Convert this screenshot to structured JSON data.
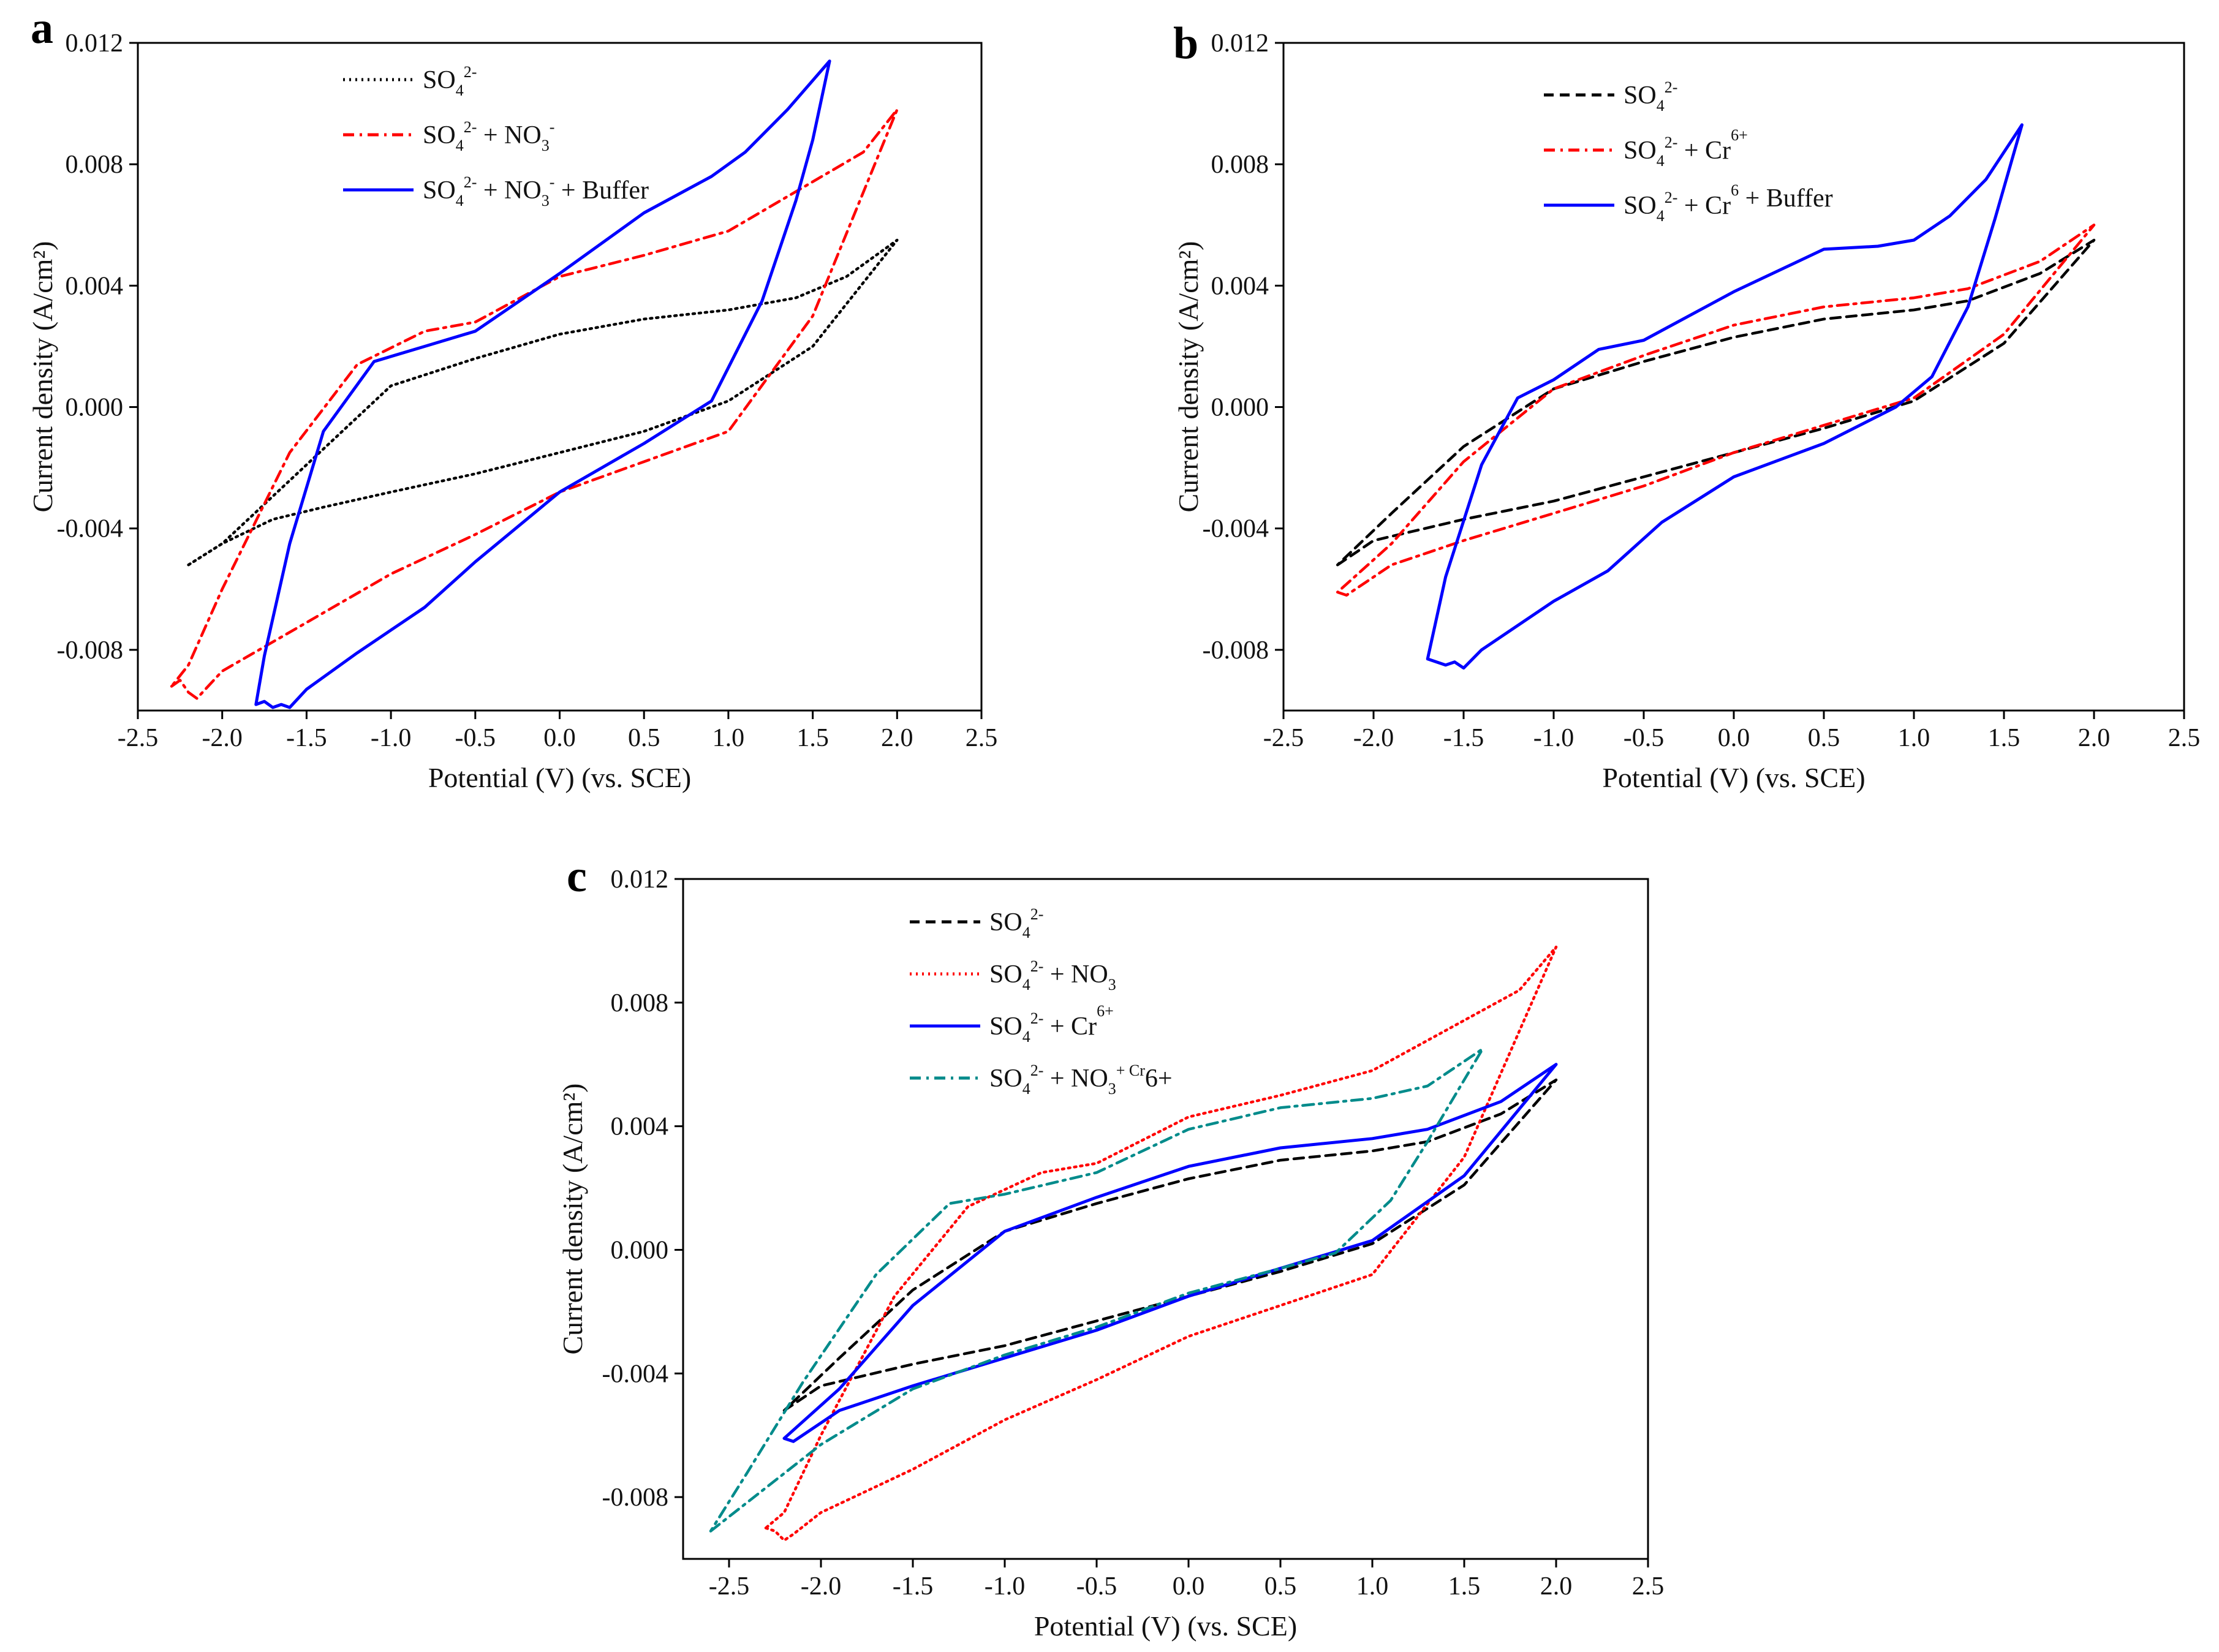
{
  "chart_data": [
    {
      "panel_label": "a",
      "type": "line",
      "xlabel": "Potential (V) (vs. SCE)",
      "ylabel": "Current density (A/cm²)",
      "xlim": [
        -2.5,
        2.5
      ],
      "ylim": [
        -0.01,
        0.012
      ],
      "xticks": [
        "-2.5",
        "-2.0",
        "-1.5",
        "-1.0",
        "-0.5",
        "0.0",
        "0.5",
        "1.0",
        "1.5",
        "2.0",
        "2.5"
      ],
      "yticks": [
        "-0.008",
        "-0.004",
        "0.000",
        "0.004",
        "0.008",
        "0.012"
      ],
      "yticks_values": [
        -0.008,
        -0.004,
        0.0,
        0.004,
        0.008,
        0.012
      ],
      "legend_position": "top-left",
      "series": [
        {
          "name": "SO4 2- ",
          "legend": [
            "SO",
            "4",
            "2-",
            ""
          ],
          "color": "#000000",
          "dash": "dot",
          "x": [
            -2.2,
            -2.0,
            -1.7,
            -1.4,
            -1.0,
            -0.5,
            0.0,
            0.5,
            1.0,
            1.5,
            2.0,
            1.7,
            1.4,
            1.0,
            0.5,
            0.0,
            -0.5,
            -1.0,
            -1.5,
            -2.0,
            -2.2
          ],
          "y": [
            -0.0052,
            -0.0045,
            -0.0037,
            -0.0033,
            -0.0028,
            -0.0022,
            -0.0015,
            -0.0008,
            0.0002,
            0.002,
            0.0055,
            0.0043,
            0.0036,
            0.0032,
            0.0029,
            0.0024,
            0.0016,
            0.0007,
            -0.0019,
            -0.0045,
            -0.0052
          ]
        },
        {
          "name": "SO4 2- + NO3-",
          "legend": [
            "SO",
            "4",
            "2-",
            " + NO",
            "3",
            "-"
          ],
          "color": "#ff0000",
          "dash": "dashdot",
          "x": [
            -2.3,
            -2.25,
            -2.2,
            -2.15,
            -2.0,
            -1.5,
            -1.0,
            -0.5,
            0.0,
            0.5,
            1.0,
            1.5,
            2.0,
            1.8,
            1.4,
            1.0,
            0.5,
            0.0,
            -0.5,
            -0.8,
            -1.2,
            -1.6,
            -2.0,
            -2.2,
            -2.3
          ],
          "y": [
            -0.0092,
            -0.009,
            -0.0094,
            -0.0096,
            -0.0087,
            -0.0071,
            -0.0055,
            -0.0042,
            -0.0028,
            -0.0018,
            -0.0008,
            0.003,
            0.0098,
            0.0084,
            0.0071,
            0.0058,
            0.005,
            0.0043,
            0.0028,
            0.0025,
            0.0014,
            -0.0015,
            -0.006,
            -0.0085,
            -0.0092
          ]
        },
        {
          "name": "SO4 2- + NO3- + Buffer",
          "legend": [
            "SO",
            "4",
            "2-",
            " + NO",
            "3",
            "-",
            " + Buffer"
          ],
          "color": "#0000ff",
          "dash": "solid",
          "x": [
            -1.8,
            -1.75,
            -1.7,
            -1.65,
            -1.6,
            -1.5,
            -1.2,
            -0.8,
            -0.5,
            0.0,
            0.5,
            0.9,
            1.2,
            1.4,
            1.5,
            1.6,
            1.35,
            1.1,
            0.9,
            0.5,
            0.0,
            -0.5,
            -0.8,
            -1.1,
            -1.4,
            -1.6,
            -1.75,
            -1.8
          ],
          "y": [
            -0.0098,
            -0.0097,
            -0.0099,
            -0.0098,
            -0.0099,
            -0.0093,
            -0.0081,
            -0.0066,
            -0.0051,
            -0.0028,
            -0.0012,
            0.0002,
            0.0035,
            0.0068,
            0.0088,
            0.0114,
            0.0098,
            0.0084,
            0.0076,
            0.0064,
            0.0044,
            0.0025,
            0.002,
            0.0015,
            -0.0008,
            -0.0045,
            -0.0082,
            -0.0098
          ]
        }
      ]
    },
    {
      "panel_label": "b",
      "type": "line",
      "xlabel": "Potential (V) (vs. SCE)",
      "ylabel": "Current density (A/cm²)",
      "xlim": [
        -2.5,
        2.5
      ],
      "ylim": [
        -0.01,
        0.012
      ],
      "xticks": [
        "-2.5",
        "-2.0",
        "-1.5",
        "-1.0",
        "-0.5",
        "0.0",
        "0.5",
        "1.0",
        "1.5",
        "2.0",
        "2.5"
      ],
      "yticks": [
        "-0.008",
        "-0.004",
        "0.000",
        "0.004",
        "0.008",
        "0.012"
      ],
      "yticks_values": [
        -0.008,
        -0.004,
        0.0,
        0.004,
        0.008,
        0.012
      ],
      "legend_position": "top-left",
      "series": [
        {
          "name": "SO4 2-",
          "legend": [
            "SO",
            "4",
            "2-",
            ""
          ],
          "color": "#000000",
          "dash": "dash",
          "x": [
            -2.2,
            -2.0,
            -1.5,
            -1.0,
            -0.5,
            0.0,
            0.5,
            1.0,
            1.5,
            2.0,
            1.7,
            1.3,
            1.0,
            0.5,
            0.0,
            -0.5,
            -1.0,
            -1.5,
            -1.9,
            -2.2
          ],
          "y": [
            -0.0052,
            -0.0044,
            -0.0037,
            -0.0031,
            -0.0023,
            -0.0015,
            -0.0007,
            0.0002,
            0.0021,
            0.0055,
            0.0044,
            0.0035,
            0.0032,
            0.0029,
            0.0023,
            0.0015,
            0.0006,
            -0.0013,
            -0.0035,
            -0.0052
          ]
        },
        {
          "name": "SO4 2- + Cr6+",
          "legend": [
            "SO",
            "4",
            "2-",
            " + Cr",
            "",
            "6+"
          ],
          "color": "#ff0000",
          "dash": "dashdot",
          "x": [
            -2.2,
            -2.15,
            -1.9,
            -1.5,
            -1.0,
            -0.5,
            0.0,
            0.5,
            1.0,
            1.5,
            2.0,
            1.7,
            1.3,
            1.0,
            0.5,
            0.0,
            -0.5,
            -1.0,
            -1.5,
            -1.9,
            -2.2
          ],
          "y": [
            -0.0061,
            -0.0062,
            -0.0052,
            -0.0044,
            -0.0035,
            -0.0026,
            -0.0015,
            -0.0006,
            0.0003,
            0.0024,
            0.006,
            0.0048,
            0.0039,
            0.0036,
            0.0033,
            0.0027,
            0.0017,
            0.0006,
            -0.0018,
            -0.0045,
            -0.0061
          ]
        },
        {
          "name": "SO4 2- + Cr6+ + Buffer",
          "legend": [
            "SO",
            "4",
            "2-",
            " + Cr",
            "",
            "6",
            " + Buffer"
          ],
          "color": "#0000ff",
          "dash": "solid",
          "x": [
            -1.7,
            -1.65,
            -1.6,
            -1.55,
            -1.5,
            -1.4,
            -1.0,
            -0.7,
            -0.4,
            0.0,
            0.5,
            0.9,
            1.1,
            1.3,
            1.45,
            1.6,
            1.4,
            1.2,
            1.0,
            0.8,
            0.5,
            0.0,
            -0.5,
            -0.75,
            -1.0,
            -1.2,
            -1.4,
            -1.6,
            -1.7
          ],
          "y": [
            -0.0083,
            -0.0084,
            -0.0085,
            -0.0084,
            -0.0086,
            -0.008,
            -0.0064,
            -0.0054,
            -0.0038,
            -0.0023,
            -0.0012,
            0.0,
            0.001,
            0.0033,
            0.0062,
            0.0093,
            0.0075,
            0.0063,
            0.0055,
            0.0053,
            0.0052,
            0.0038,
            0.0022,
            0.0019,
            0.0009,
            0.0003,
            -0.0019,
            -0.0056,
            -0.0083
          ]
        }
      ]
    },
    {
      "panel_label": "c",
      "type": "line",
      "xlabel": "Potential (V) (vs. SCE)",
      "ylabel": "Current density (A/cm²)",
      "xlim": [
        -2.75,
        2.5
      ],
      "ylim": [
        -0.01,
        0.012
      ],
      "xticks": [
        "-2.5",
        "-2.0",
        "-1.5",
        "-1.0",
        "-0.5",
        "0.0",
        "0.5",
        "1.0",
        "1.5",
        "2.0",
        "2.5"
      ],
      "xticks_values": [
        -2.5,
        -2.0,
        -1.5,
        -1.0,
        -0.5,
        0.0,
        0.5,
        1.0,
        1.5,
        2.0,
        2.5
      ],
      "yticks": [
        "-0.008",
        "-0.004",
        "0.000",
        "0.004",
        "0.008",
        "0.012"
      ],
      "yticks_values": [
        -0.008,
        -0.004,
        0.0,
        0.004,
        0.008,
        0.012
      ],
      "legend_position": "top-left",
      "series": [
        {
          "name": "SO4 2-",
          "legend": [
            "SO",
            "4",
            "2-",
            ""
          ],
          "color": "#000000",
          "dash": "dash",
          "x": [
            -2.2,
            -2.0,
            -1.5,
            -1.0,
            -0.5,
            0.0,
            0.5,
            1.0,
            1.5,
            2.0,
            1.7,
            1.3,
            1.0,
            0.5,
            0.0,
            -0.5,
            -1.0,
            -1.5,
            -1.9,
            -2.2
          ],
          "y": [
            -0.0052,
            -0.0044,
            -0.0037,
            -0.0031,
            -0.0023,
            -0.0015,
            -0.0007,
            0.0002,
            0.0021,
            0.0055,
            0.0044,
            0.0035,
            0.0032,
            0.0029,
            0.0023,
            0.0015,
            0.0006,
            -0.0013,
            -0.0035,
            -0.0052
          ]
        },
        {
          "name": "SO4 2- + NO3",
          "legend": [
            "SO",
            "4",
            "2-",
            " + NO",
            "3",
            ""
          ],
          "color": "#ff0000",
          "dash": "dot",
          "x": [
            -2.3,
            -2.25,
            -2.2,
            -2.15,
            -2.0,
            -1.5,
            -1.0,
            -0.5,
            0.0,
            0.5,
            1.0,
            1.5,
            2.0,
            1.8,
            1.4,
            1.0,
            0.5,
            0.0,
            -0.5,
            -0.8,
            -1.2,
            -1.6,
            -2.0,
            -2.2,
            -2.3
          ],
          "y": [
            -0.009,
            -0.0091,
            -0.0094,
            -0.0092,
            -0.0085,
            -0.0071,
            -0.0055,
            -0.0042,
            -0.0028,
            -0.0018,
            -0.0008,
            0.003,
            0.0098,
            0.0084,
            0.0071,
            0.0058,
            0.005,
            0.0043,
            0.0028,
            0.0025,
            0.0014,
            -0.0015,
            -0.006,
            -0.0085,
            -0.009
          ]
        },
        {
          "name": "SO4 2- + Cr6+",
          "legend": [
            "SO",
            "4",
            "2-",
            " + Cr",
            "",
            "6+"
          ],
          "color": "#0000ff",
          "dash": "solid",
          "x": [
            -2.2,
            -2.15,
            -1.9,
            -1.5,
            -1.0,
            -0.5,
            0.0,
            0.5,
            1.0,
            1.5,
            2.0,
            1.7,
            1.3,
            1.0,
            0.5,
            0.0,
            -0.5,
            -1.0,
            -1.5,
            -1.9,
            -2.2
          ],
          "y": [
            -0.0061,
            -0.0062,
            -0.0052,
            -0.0044,
            -0.0035,
            -0.0026,
            -0.0015,
            -0.0006,
            0.0003,
            0.0024,
            0.006,
            0.0048,
            0.0039,
            0.0036,
            0.0033,
            0.0027,
            0.0017,
            0.0006,
            -0.0018,
            -0.0045,
            -0.0061
          ]
        },
        {
          "name": "SO4 2- + NO3 + Cr6+",
          "legend": [
            "SO",
            "4",
            "2-",
            " + NO",
            "3",
            "+ Cr",
            "6+"
          ],
          "color": "#008b8b",
          "dash": "dashdot",
          "x": [
            -2.6,
            -2.3,
            -2.0,
            -1.5,
            -1.0,
            -0.5,
            0.0,
            0.5,
            0.8,
            1.1,
            1.3,
            1.6,
            1.3,
            1.0,
            0.5,
            0.0,
            -0.5,
            -1.0,
            -1.3,
            -1.7,
            -2.1,
            -2.4,
            -2.6
          ],
          "y": [
            -0.0091,
            -0.0077,
            -0.0063,
            -0.0045,
            -0.0034,
            -0.0025,
            -0.0014,
            -0.0006,
            -0.0001,
            0.0016,
            0.0035,
            0.0065,
            0.0053,
            0.0049,
            0.0046,
            0.0039,
            0.0025,
            0.0018,
            0.0015,
            -0.0008,
            -0.0043,
            -0.0072,
            -0.0091
          ]
        }
      ]
    }
  ]
}
